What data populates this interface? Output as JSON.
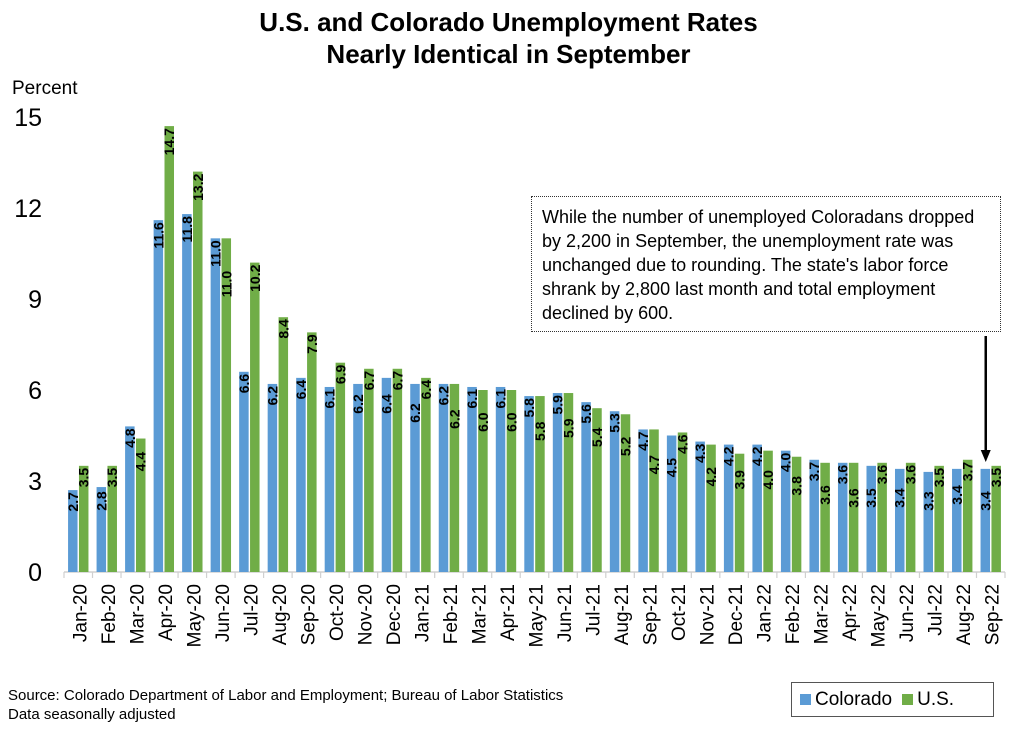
{
  "chart_data": {
    "type": "bar",
    "title": "U.S. and Colorado Unemployment Rates Nearly Identical in September",
    "title_lines": [
      "U.S. and Colorado Unemployment Rates",
      "Nearly Identical in September"
    ],
    "ylabel": "Percent",
    "ylim": [
      0,
      15
    ],
    "yticks": [
      0,
      3,
      6,
      9,
      12,
      15
    ],
    "grid": false,
    "legend_placement": "bottom-right",
    "categories": [
      "Jan-20",
      "Feb-20",
      "Mar-20",
      "Apr-20",
      "May-20",
      "Jun-20",
      "Jul-20",
      "Aug-20",
      "Sep-20",
      "Oct-20",
      "Nov-20",
      "Dec-20",
      "Jan-21",
      "Feb-21",
      "Mar-21",
      "Apr-21",
      "May-21",
      "Jun-21",
      "Jul-21",
      "Aug-21",
      "Sep-21",
      "Oct-21",
      "Nov-21",
      "Dec-21",
      "Jan-22",
      "Feb-22",
      "Mar-22",
      "Apr-22",
      "May-22",
      "Jun-22",
      "Jul-22",
      "Aug-22",
      "Sep-22"
    ],
    "series": [
      {
        "name": "Colorado",
        "color": "#5B9BD5",
        "values": [
          2.7,
          2.8,
          4.8,
          11.6,
          11.8,
          11.0,
          6.6,
          6.2,
          6.4,
          6.1,
          6.2,
          6.4,
          6.2,
          6.2,
          6.1,
          6.1,
          5.8,
          5.9,
          5.6,
          5.3,
          4.7,
          4.5,
          4.3,
          4.2,
          4.2,
          4.0,
          3.7,
          3.6,
          3.5,
          3.4,
          3.3,
          3.4,
          3.4
        ]
      },
      {
        "name": "U.S.",
        "color": "#70AD47",
        "values": [
          3.5,
          3.5,
          4.4,
          14.7,
          13.2,
          11.0,
          10.2,
          8.4,
          7.9,
          6.9,
          6.7,
          6.7,
          6.4,
          6.2,
          6.0,
          6.0,
          5.8,
          5.9,
          5.4,
          5.2,
          4.7,
          4.6,
          4.2,
          3.9,
          4.0,
          3.8,
          3.6,
          3.6,
          3.6,
          3.6,
          3.5,
          3.7,
          3.5
        ]
      }
    ],
    "annotation": "While the number of unemployed Coloradans dropped by 2,200 in September, the unemployment rate was unchanged due to rounding. The state's labor force shrank by 2,800 last month and total employment declined by 600.",
    "annotation_target": "Sep-22"
  },
  "source": "Source: Colorado Department of Labor and Employment; Bureau of Labor Statistics",
  "footnote": "Data seasonally adjusted"
}
